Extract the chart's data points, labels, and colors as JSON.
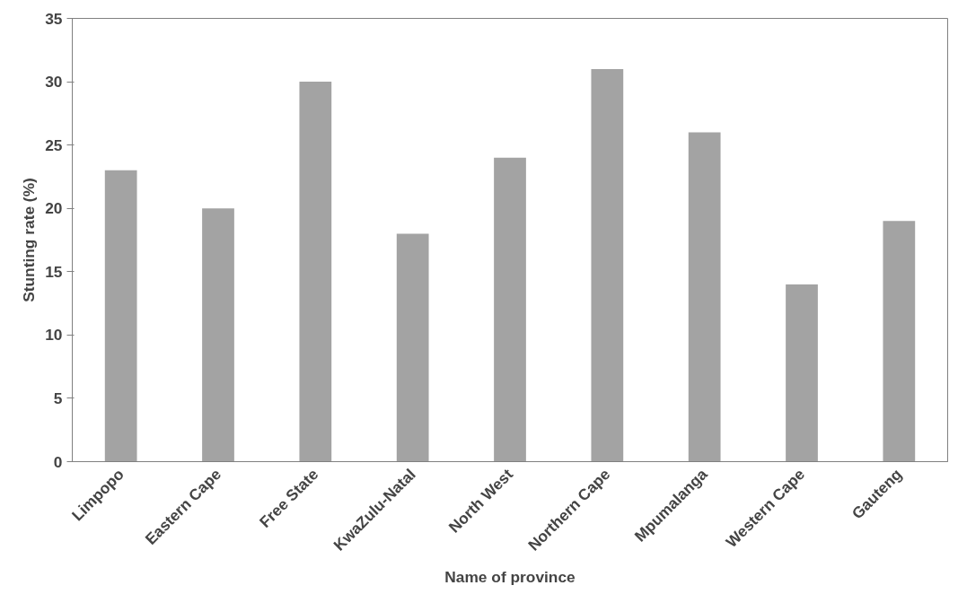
{
  "chart_data": {
    "type": "bar",
    "xlabel": "Name of province",
    "ylabel": "Stunting rate (%)",
    "categories": [
      "Limpopo",
      "Eastern Cape",
      "Free State",
      "KwaZulu-Natal",
      "North West",
      "Northern Cape",
      "Mpumalanga",
      "Western Cape",
      "Gauteng"
    ],
    "values": [
      23,
      20,
      30,
      18,
      24,
      31,
      26,
      14,
      19
    ],
    "color": "#a3a3a3",
    "ylim": [
      0,
      35
    ],
    "yticks": [
      0,
      5,
      10,
      15,
      20,
      25,
      30,
      35
    ],
    "grid": false
  }
}
